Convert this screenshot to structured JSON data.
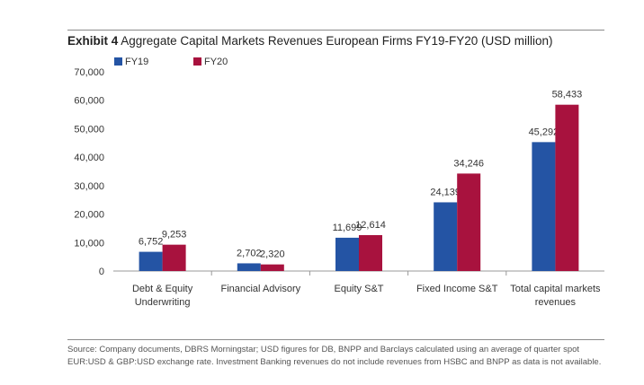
{
  "exhibit": {
    "label": "Exhibit 4",
    "title": "Aggregate Capital Markets Revenues European Firms FY19-FY20 (USD million)"
  },
  "chart_data": {
    "type": "bar",
    "title": "Aggregate Capital Markets Revenues European Firms FY19-FY20 (USD million)",
    "xlabel": "",
    "ylabel": "",
    "ylim": [
      0,
      70000
    ],
    "yticks": [
      0,
      10000,
      20000,
      30000,
      40000,
      50000,
      60000,
      70000
    ],
    "ytick_labels": [
      "0",
      "10,000",
      "20,000",
      "30,000",
      "40,000",
      "50,000",
      "60,000",
      "70,000"
    ],
    "categories": [
      [
        "Debt & Equity",
        "Underwriting"
      ],
      [
        "Financial Advisory"
      ],
      [
        "Equity S&T"
      ],
      [
        "Fixed Income S&T"
      ],
      [
        "Total capital markets",
        "revenues"
      ]
    ],
    "series": [
      {
        "name": "FY19",
        "color": "#2454a4",
        "values": [
          6752,
          2702,
          11699,
          24139,
          45292
        ],
        "labels": [
          "6,752",
          "2,702",
          "11,699",
          "24,139",
          "45,292"
        ]
      },
      {
        "name": "FY20",
        "color": "#a8123e",
        "values": [
          9253,
          2320,
          12614,
          34246,
          58433
        ],
        "labels": [
          "9,253",
          "2,320",
          "12,614",
          "34,246",
          "58,433"
        ]
      }
    ],
    "legend": "top-left",
    "grid": false
  },
  "source": "Source: Company documents, DBRS Morningstar; USD figures for DB, BNPP and Barclays calculated using an average of quarter spot EUR:USD & GBP:USD exchange rate. Investment Banking revenues do not include revenues from HSBC and BNPP as data is not available."
}
